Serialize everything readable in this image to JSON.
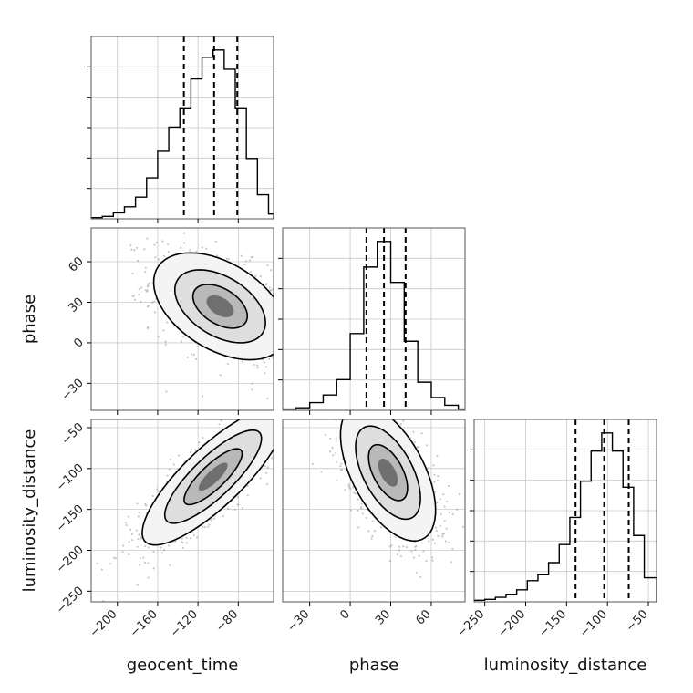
{
  "chart_data": {
    "type": "corner",
    "parameters": [
      "geocent_time",
      "phase",
      "luminosity_distance"
    ],
    "axis_labels": {
      "geocent_time": "geocent_time",
      "phase": "phase",
      "luminosity_distance": "luminosity_distance"
    },
    "ranges": {
      "geocent_time": [
        -226,
        -45
      ],
      "phase": [
        -50,
        85
      ],
      "luminosity_distance": [
        -263,
        -40
      ]
    },
    "ticks": {
      "geocent_time": [
        -200,
        -160,
        -120,
        -80
      ],
      "phase": [
        -30,
        0,
        30,
        60
      ],
      "luminosity_distance": [
        -250,
        -200,
        -150,
        -100,
        -50
      ]
    },
    "quantiles": {
      "geocent_time": [
        -134,
        -104,
        -81
      ],
      "phase": [
        12,
        25,
        41
      ],
      "luminosity_distance": [
        -139,
        -104,
        -74
      ]
    },
    "marginals": {
      "geocent_time": {
        "bins": [
          -226,
          -215,
          -204,
          -193,
          -182,
          -171,
          -160,
          -149,
          -138,
          -127,
          -116,
          -105,
          -94,
          -83,
          -72,
          -61,
          -50
        ],
        "densities": [
          0.005,
          0.01,
          0.025,
          0.05,
          0.09,
          0.17,
          0.28,
          0.38,
          0.46,
          0.58,
          0.67,
          0.7,
          0.62,
          0.46,
          0.25,
          0.1,
          0.02
        ]
      },
      "phase": {
        "bins": [
          -50,
          -40,
          -30,
          -20,
          -10,
          0,
          10,
          20,
          30,
          40,
          50,
          60,
          70,
          80
        ],
        "densities": [
          0.005,
          0.01,
          0.03,
          0.06,
          0.12,
          0.3,
          0.56,
          0.66,
          0.5,
          0.27,
          0.11,
          0.05,
          0.02,
          0.005
        ]
      },
      "luminosity_distance": {
        "bins": [
          -263,
          -250,
          -237,
          -224,
          -211,
          -198,
          -185,
          -172,
          -159,
          -146,
          -133,
          -120,
          -107,
          -94,
          -81,
          -68,
          -55
        ],
        "densities": [
          0.005,
          0.008,
          0.015,
          0.025,
          0.04,
          0.07,
          0.09,
          0.13,
          0.19,
          0.28,
          0.4,
          0.5,
          0.56,
          0.5,
          0.38,
          0.22,
          0.08
        ]
      }
    },
    "pairs": [
      {
        "x": "geocent_time",
        "y": "phase",
        "mean": [
          -98,
          27
        ],
        "std": [
          30,
          18
        ],
        "rho": -0.45
      },
      {
        "x": "geocent_time",
        "y": "luminosity_distance",
        "mean": [
          -105,
          -110
        ],
        "std": [
          32,
          38
        ],
        "rho": 0.82
      },
      {
        "x": "phase",
        "y": "luminosity_distance",
        "mean": [
          28,
          -105
        ],
        "std": [
          16,
          38
        ],
        "rho": -0.55
      }
    ]
  }
}
